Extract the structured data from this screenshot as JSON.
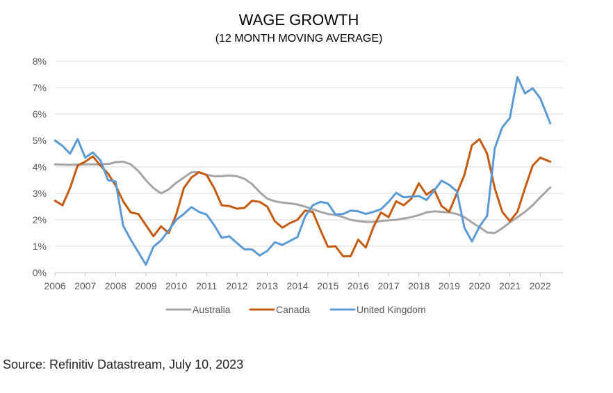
{
  "chart_data": {
    "type": "line",
    "title": "WAGE GROWTH",
    "subtitle": "(12 MONTH MOVING AVERAGE)",
    "xlim": [
      2006,
      2022.75
    ],
    "ylim": [
      0,
      8
    ],
    "x_ticks": [
      "2006",
      "2007",
      "2008",
      "2009",
      "2010",
      "2011",
      "2012",
      "2013",
      "2014",
      "2015",
      "2016",
      "2017",
      "2018",
      "2019",
      "2020",
      "2021",
      "2022"
    ],
    "y_ticks": [
      "0%",
      "1%",
      "2%",
      "3%",
      "4%",
      "5%",
      "6%",
      "7%",
      "8%"
    ],
    "grid": "horizontal",
    "legend_position": "bottom",
    "series": [
      {
        "name": "Australia",
        "color": "#a5a5a5",
        "points": [
          [
            2006,
            4.1
          ],
          [
            2006.5,
            4.08
          ],
          [
            2007,
            4.1
          ],
          [
            2007.5,
            4.1
          ],
          [
            2007.8,
            4.12
          ],
          [
            2008,
            4.18
          ],
          [
            2008.25,
            4.2
          ],
          [
            2008.5,
            4.1
          ],
          [
            2008.75,
            3.85
          ],
          [
            2009,
            3.5
          ],
          [
            2009.25,
            3.2
          ],
          [
            2009.5,
            3.0
          ],
          [
            2009.75,
            3.15
          ],
          [
            2010,
            3.4
          ],
          [
            2010.25,
            3.6
          ],
          [
            2010.5,
            3.8
          ],
          [
            2010.75,
            3.8
          ],
          [
            2011,
            3.7
          ],
          [
            2011.25,
            3.65
          ],
          [
            2011.5,
            3.65
          ],
          [
            2011.75,
            3.68
          ],
          [
            2012,
            3.65
          ],
          [
            2012.25,
            3.55
          ],
          [
            2012.5,
            3.35
          ],
          [
            2012.75,
            3.05
          ],
          [
            2013,
            2.8
          ],
          [
            2013.25,
            2.7
          ],
          [
            2013.5,
            2.65
          ],
          [
            2013.75,
            2.62
          ],
          [
            2014,
            2.58
          ],
          [
            2014.25,
            2.5
          ],
          [
            2014.5,
            2.4
          ],
          [
            2014.75,
            2.3
          ],
          [
            2015,
            2.22
          ],
          [
            2015.25,
            2.18
          ],
          [
            2015.5,
            2.1
          ],
          [
            2015.75,
            2.0
          ],
          [
            2016,
            1.95
          ],
          [
            2016.25,
            1.92
          ],
          [
            2016.5,
            1.92
          ],
          [
            2016.75,
            1.95
          ],
          [
            2017,
            1.98
          ],
          [
            2017.25,
            2.0
          ],
          [
            2017.5,
            2.05
          ],
          [
            2017.75,
            2.1
          ],
          [
            2018,
            2.18
          ],
          [
            2018.25,
            2.28
          ],
          [
            2018.5,
            2.32
          ],
          [
            2018.75,
            2.3
          ],
          [
            2019,
            2.28
          ],
          [
            2019.25,
            2.22
          ],
          [
            2019.5,
            2.1
          ],
          [
            2019.75,
            1.9
          ],
          [
            2020,
            1.72
          ],
          [
            2020.25,
            1.52
          ],
          [
            2020.5,
            1.5
          ],
          [
            2020.75,
            1.68
          ],
          [
            2021,
            1.9
          ],
          [
            2021.25,
            2.1
          ],
          [
            2021.5,
            2.3
          ],
          [
            2021.75,
            2.55
          ],
          [
            2022,
            2.85
          ],
          [
            2022.33,
            3.22
          ]
        ]
      },
      {
        "name": "Canada",
        "color": "#c55a11",
        "points": [
          [
            2006,
            2.72
          ],
          [
            2006.25,
            2.55
          ],
          [
            2006.5,
            3.2
          ],
          [
            2006.75,
            4.05
          ],
          [
            2007,
            4.2
          ],
          [
            2007.25,
            4.4
          ],
          [
            2007.5,
            4.05
          ],
          [
            2007.75,
            3.75
          ],
          [
            2008,
            3.3
          ],
          [
            2008.25,
            2.7
          ],
          [
            2008.5,
            2.28
          ],
          [
            2008.75,
            2.22
          ],
          [
            2009,
            1.8
          ],
          [
            2009.25,
            1.38
          ],
          [
            2009.5,
            1.75
          ],
          [
            2009.75,
            1.5
          ],
          [
            2010,
            2.2
          ],
          [
            2010.25,
            3.2
          ],
          [
            2010.5,
            3.6
          ],
          [
            2010.75,
            3.8
          ],
          [
            2011,
            3.7
          ],
          [
            2011.25,
            3.2
          ],
          [
            2011.5,
            2.55
          ],
          [
            2011.75,
            2.52
          ],
          [
            2012,
            2.42
          ],
          [
            2012.25,
            2.45
          ],
          [
            2012.5,
            2.72
          ],
          [
            2012.75,
            2.68
          ],
          [
            2013,
            2.5
          ],
          [
            2013.25,
            1.95
          ],
          [
            2013.5,
            1.7
          ],
          [
            2013.75,
            1.88
          ],
          [
            2014,
            2.0
          ],
          [
            2014.25,
            2.35
          ],
          [
            2014.5,
            2.3
          ],
          [
            2014.75,
            1.62
          ],
          [
            2015,
            0.98
          ],
          [
            2015.25,
            1.0
          ],
          [
            2015.5,
            0.62
          ],
          [
            2015.75,
            0.62
          ],
          [
            2016,
            1.25
          ],
          [
            2016.25,
            0.95
          ],
          [
            2016.5,
            1.72
          ],
          [
            2016.75,
            2.28
          ],
          [
            2017,
            2.1
          ],
          [
            2017.25,
            2.7
          ],
          [
            2017.5,
            2.55
          ],
          [
            2017.75,
            2.8
          ],
          [
            2018,
            3.38
          ],
          [
            2018.25,
            2.95
          ],
          [
            2018.5,
            3.15
          ],
          [
            2018.75,
            2.52
          ],
          [
            2019,
            2.3
          ],
          [
            2019.25,
            3.0
          ],
          [
            2019.5,
            3.7
          ],
          [
            2019.75,
            4.82
          ],
          [
            2020,
            5.05
          ],
          [
            2020.25,
            4.5
          ],
          [
            2020.5,
            3.2
          ],
          [
            2020.75,
            2.3
          ],
          [
            2021,
            1.95
          ],
          [
            2021.25,
            2.3
          ],
          [
            2021.5,
            3.2
          ],
          [
            2021.75,
            4.05
          ],
          [
            2022,
            4.35
          ],
          [
            2022.33,
            4.2
          ]
        ]
      },
      {
        "name": "United Kingdom",
        "color": "#5b9bd5",
        "points": [
          [
            2006,
            5.0
          ],
          [
            2006.25,
            4.8
          ],
          [
            2006.5,
            4.5
          ],
          [
            2006.75,
            5.05
          ],
          [
            2007,
            4.35
          ],
          [
            2007.25,
            4.55
          ],
          [
            2007.5,
            4.25
          ],
          [
            2007.75,
            3.5
          ],
          [
            2008,
            3.45
          ],
          [
            2008.25,
            1.78
          ],
          [
            2008.5,
            1.25
          ],
          [
            2008.75,
            0.78
          ],
          [
            2009,
            0.3
          ],
          [
            2009.25,
            0.98
          ],
          [
            2009.5,
            1.22
          ],
          [
            2009.75,
            1.6
          ],
          [
            2010,
            2.0
          ],
          [
            2010.25,
            2.22
          ],
          [
            2010.5,
            2.48
          ],
          [
            2010.75,
            2.3
          ],
          [
            2011,
            2.2
          ],
          [
            2011.25,
            1.8
          ],
          [
            2011.5,
            1.32
          ],
          [
            2011.75,
            1.38
          ],
          [
            2012,
            1.12
          ],
          [
            2012.25,
            0.88
          ],
          [
            2012.5,
            0.88
          ],
          [
            2012.75,
            0.65
          ],
          [
            2013,
            0.82
          ],
          [
            2013.25,
            1.15
          ],
          [
            2013.5,
            1.05
          ],
          [
            2013.75,
            1.2
          ],
          [
            2014,
            1.35
          ],
          [
            2014.25,
            2.12
          ],
          [
            2014.5,
            2.55
          ],
          [
            2014.75,
            2.68
          ],
          [
            2015,
            2.62
          ],
          [
            2015.25,
            2.2
          ],
          [
            2015.5,
            2.22
          ],
          [
            2015.75,
            2.35
          ],
          [
            2016,
            2.32
          ],
          [
            2016.25,
            2.22
          ],
          [
            2016.5,
            2.3
          ],
          [
            2016.75,
            2.4
          ],
          [
            2017,
            2.68
          ],
          [
            2017.25,
            3.02
          ],
          [
            2017.5,
            2.85
          ],
          [
            2017.75,
            2.88
          ],
          [
            2018,
            2.9
          ],
          [
            2018.25,
            2.75
          ],
          [
            2018.5,
            3.1
          ],
          [
            2018.75,
            3.48
          ],
          [
            2019,
            3.32
          ],
          [
            2019.25,
            3.08
          ],
          [
            2019.5,
            1.7
          ],
          [
            2019.75,
            1.18
          ],
          [
            2020,
            1.75
          ],
          [
            2020.25,
            2.15
          ],
          [
            2020.5,
            4.7
          ],
          [
            2020.75,
            5.5
          ],
          [
            2021,
            5.85
          ],
          [
            2021.25,
            7.4
          ],
          [
            2021.5,
            6.78
          ],
          [
            2021.75,
            6.98
          ],
          [
            2022,
            6.6
          ],
          [
            2022.33,
            5.65
          ]
        ]
      }
    ]
  },
  "source": "Source: Refinitiv Datastream, July 10, 2023"
}
